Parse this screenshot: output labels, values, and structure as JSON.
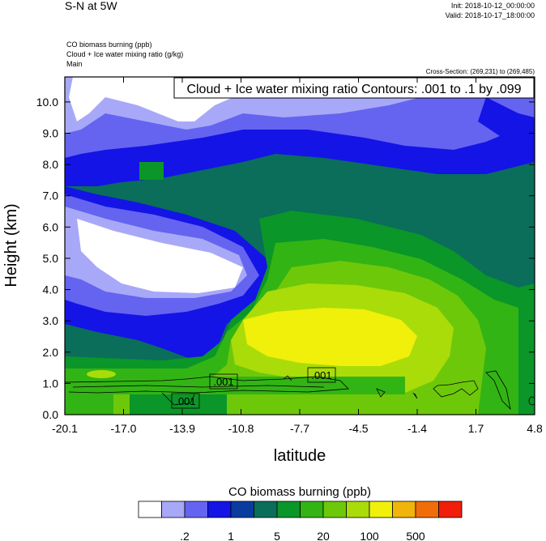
{
  "header": {
    "title": "S-N at 5W",
    "init": "Init: 2018-10-12_00:00:00",
    "valid": "Valid: 2018-10-17_18:00:00",
    "field1": "CO biomass burning   (ppb)",
    "field2": "Cloud + Ice water mixing ratio   (g/kg)",
    "field3": "Main",
    "cross_section": "Cross-Section: (269,231) to (269,485)",
    "contour_info": "Cloud + Ice water mixing ratio Contours: .001 to .1 by .099"
  },
  "chart_data": {
    "type": "heatmap",
    "title": "S-N at 5W",
    "xlabel": "latitude",
    "ylabel": "Height (km)",
    "xlim": [
      -20.1,
      4.8
    ],
    "ylim": [
      0.0,
      10.8
    ],
    "x_ticks": [
      "-20.1",
      "-17.0",
      "-13.9",
      "-10.8",
      "-7.7",
      "-4.5",
      "-1.4",
      "1.7",
      "4.8"
    ],
    "y_ticks": [
      "0.0",
      "1.0",
      "2.0",
      "3.0",
      "4.0",
      "5.0",
      "6.0",
      "7.0",
      "8.0",
      "9.0",
      "10.0"
    ],
    "colorbar": {
      "title": "CO biomass burning  (ppb)",
      "colors": [
        "#ffffff",
        "#a8a8f8",
        "#6464f0",
        "#1414e6",
        "#0a3ca0",
        "#0a6e5a",
        "#0a9628",
        "#32b414",
        "#6ec80a",
        "#aadc0a",
        "#f0f00a",
        "#f0b40a",
        "#f06e0a",
        "#f01e0a"
      ],
      "labels": [
        ".2",
        "1",
        "5",
        "20",
        "100",
        "500"
      ]
    },
    "contour_labels": [
      ".001",
      ".001",
      ".001"
    ]
  }
}
